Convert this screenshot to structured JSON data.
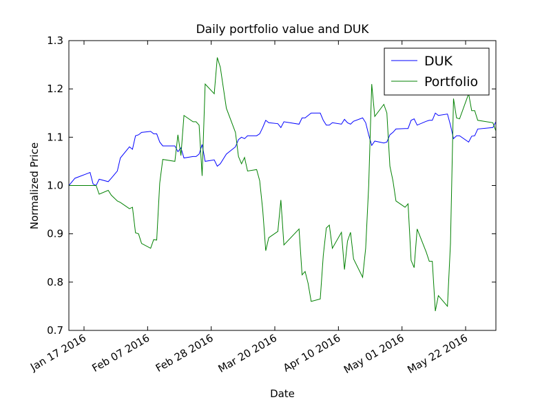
{
  "chart_data": {
    "type": "line",
    "title": "Daily portfolio value and DUK",
    "x_label": "Date",
    "y_label": "Normalized Price",
    "x": [
      "2016-01-12",
      "2016-01-14",
      "2016-01-19",
      "2016-01-20",
      "2016-01-21",
      "2016-01-22",
      "2016-01-25",
      "2016-01-26",
      "2016-01-28",
      "2016-01-29",
      "2016-02-01",
      "2016-02-02",
      "2016-02-03",
      "2016-02-04",
      "2016-02-05",
      "2016-02-08",
      "2016-02-09",
      "2016-02-10",
      "2016-02-11",
      "2016-02-12",
      "2016-02-16",
      "2016-02-17",
      "2016-02-18",
      "2016-02-19",
      "2016-02-22",
      "2016-02-23",
      "2016-02-24",
      "2016-02-25",
      "2016-02-26",
      "2016-02-29",
      "2016-03-01",
      "2016-03-02",
      "2016-03-04",
      "2016-03-07",
      "2016-03-08",
      "2016-03-09",
      "2016-03-10",
      "2016-03-11",
      "2016-03-14",
      "2016-03-15",
      "2016-03-16",
      "2016-03-17",
      "2016-03-18",
      "2016-03-21",
      "2016-03-22",
      "2016-03-23",
      "2016-03-28",
      "2016-03-29",
      "2016-03-30",
      "2016-03-31",
      "2016-04-01",
      "2016-04-04",
      "2016-04-05",
      "2016-04-06",
      "2016-04-07",
      "2016-04-08",
      "2016-04-11",
      "2016-04-12",
      "2016-04-13",
      "2016-04-14",
      "2016-04-15",
      "2016-04-18",
      "2016-04-19",
      "2016-04-20",
      "2016-04-21",
      "2016-04-22",
      "2016-04-25",
      "2016-04-26",
      "2016-04-27",
      "2016-04-28",
      "2016-04-29",
      "2016-05-02",
      "2016-05-03",
      "2016-05-04",
      "2016-05-05",
      "2016-05-06",
      "2016-05-09",
      "2016-05-10",
      "2016-05-11",
      "2016-05-12",
      "2016-05-13",
      "2016-05-16",
      "2016-05-17",
      "2016-05-18",
      "2016-05-19",
      "2016-05-20",
      "2016-05-23",
      "2016-05-24",
      "2016-05-25",
      "2016-05-26",
      "2016-05-31",
      "2016-06-01"
    ],
    "series": [
      {
        "name": "DUK",
        "color": "#0000ff",
        "values": [
          1.0,
          1.015,
          1.027,
          1.003,
          1.0,
          1.013,
          1.008,
          1.015,
          1.03,
          1.057,
          1.08,
          1.075,
          1.103,
          1.105,
          1.11,
          1.112,
          1.107,
          1.107,
          1.09,
          1.082,
          1.082,
          1.07,
          1.078,
          1.057,
          1.06,
          1.06,
          1.065,
          1.085,
          1.05,
          1.053,
          1.04,
          1.045,
          1.065,
          1.08,
          1.095,
          1.1,
          1.097,
          1.103,
          1.103,
          1.107,
          1.12,
          1.135,
          1.13,
          1.128,
          1.12,
          1.132,
          1.127,
          1.14,
          1.14,
          1.145,
          1.15,
          1.15,
          1.135,
          1.125,
          1.125,
          1.13,
          1.127,
          1.137,
          1.13,
          1.127,
          1.133,
          1.14,
          1.13,
          1.105,
          1.083,
          1.092,
          1.088,
          1.09,
          1.105,
          1.11,
          1.117,
          1.118,
          1.118,
          1.135,
          1.138,
          1.125,
          1.133,
          1.135,
          1.135,
          1.15,
          1.145,
          1.148,
          1.125,
          1.097,
          1.103,
          1.103,
          1.09,
          1.102,
          1.103,
          1.117,
          1.12,
          1.132
        ]
      },
      {
        "name": "Portfolio",
        "color": "#008000",
        "values": [
          1.0,
          1.0,
          1.0,
          1.0,
          1.0,
          0.982,
          0.99,
          0.98,
          0.968,
          0.965,
          0.952,
          0.955,
          0.902,
          0.9,
          0.88,
          0.87,
          0.888,
          0.887,
          1.005,
          1.054,
          1.05,
          1.105,
          1.062,
          1.145,
          1.132,
          1.132,
          1.125,
          1.02,
          1.21,
          1.19,
          1.265,
          1.245,
          1.16,
          1.11,
          1.06,
          1.045,
          1.058,
          1.03,
          1.033,
          1.01,
          0.95,
          0.865,
          0.892,
          0.905,
          0.97,
          0.877,
          0.91,
          0.815,
          0.822,
          0.797,
          0.76,
          0.765,
          0.855,
          0.912,
          0.918,
          0.87,
          0.903,
          0.826,
          0.885,
          0.903,
          0.848,
          0.81,
          0.87,
          1.0,
          1.21,
          1.143,
          1.168,
          1.15,
          1.04,
          1.01,
          0.968,
          0.955,
          0.962,
          0.845,
          0.83,
          0.91,
          0.862,
          0.843,
          0.843,
          0.74,
          0.772,
          0.75,
          0.88,
          1.18,
          1.14,
          1.138,
          1.19,
          1.155,
          1.155,
          1.135,
          1.13,
          1.113
        ]
      }
    ],
    "xlim": [
      "2016-01-12",
      "2016-06-01"
    ],
    "xticks": [
      {
        "value": "2016-01-17",
        "label": "Jan 17 2016"
      },
      {
        "value": "2016-02-07",
        "label": "Feb 07 2016"
      },
      {
        "value": "2016-02-28",
        "label": "Feb 28 2016"
      },
      {
        "value": "2016-03-20",
        "label": "Mar 20 2016"
      },
      {
        "value": "2016-04-10",
        "label": "Apr 10 2016"
      },
      {
        "value": "2016-05-01",
        "label": "May 01 2016"
      },
      {
        "value": "2016-05-22",
        "label": "May 22 2016"
      }
    ],
    "ylim": [
      0.7,
      1.3
    ],
    "yticks": [
      0.7,
      0.8,
      0.9,
      {
        "value": 1,
        "label": "1.0"
      },
      1.1,
      1.2,
      1.3
    ],
    "legend": "upper right"
  }
}
